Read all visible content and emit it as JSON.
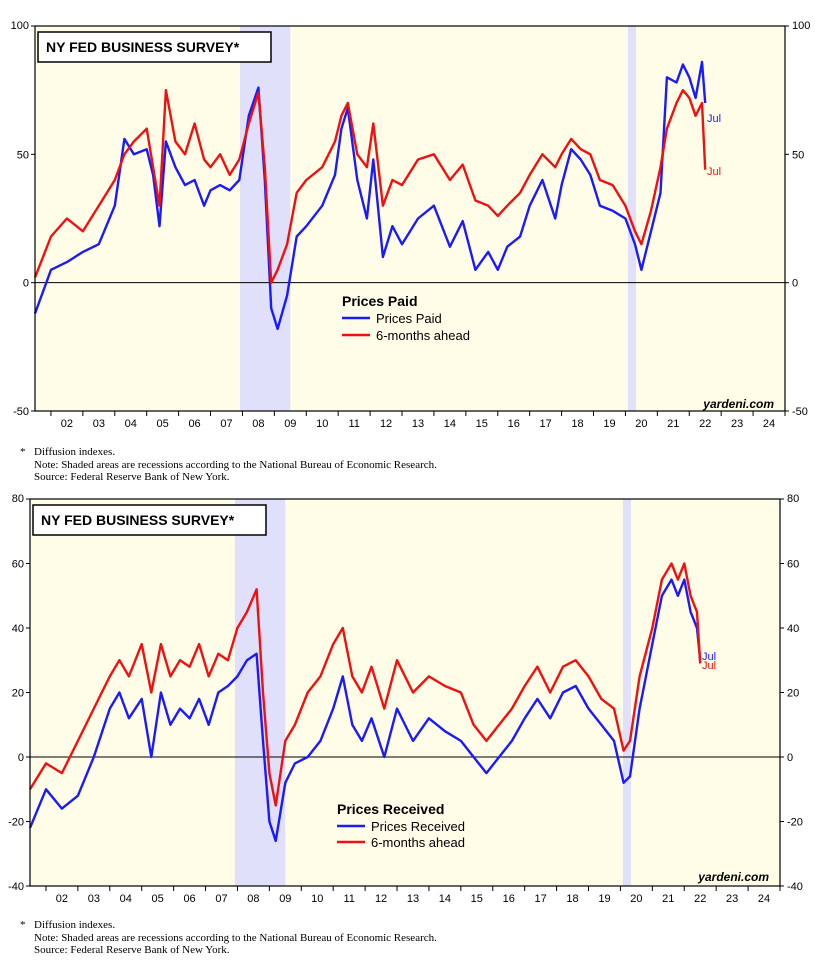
{
  "charts": [
    {
      "title": "NY FED BUSINESS SURVEY*",
      "legend_title": "Prices Paid",
      "watermark": "yardeni.com",
      "series_labels": [
        "Prices Paid",
        "6-months ahead"
      ],
      "end_labels": [
        "Jul",
        "Jul"
      ],
      "footnotes": {
        "star": "*",
        "line1": "Diffusion indexes.",
        "line2": "Note: Shaded areas are recessions according to the National Bureau of Economic Research.",
        "line3": "Source: Federal Reserve Bank of New York."
      }
    },
    {
      "title": "NY FED BUSINESS SURVEY*",
      "legend_title": "Prices Received",
      "watermark": "yardeni.com",
      "series_labels": [
        "Prices Received",
        "6-months ahead"
      ],
      "end_labels": [
        "Jul",
        "Jul"
      ],
      "footnotes": {
        "star": "*",
        "line1": "Diffusion indexes.",
        "line2": "Note: Shaded areas are recessions according to the National Bureau of Economic Research.",
        "line3": "Source: Federal Reserve Bank of New York."
      }
    }
  ],
  "colors": {
    "background": "#FFFDE7",
    "recession": "#E0E0FA",
    "blue": "#1a1aff",
    "red": "#ee1111"
  },
  "chart_data": [
    {
      "type": "line",
      "title": "NY FED BUSINESS SURVEY*",
      "subtitle": "Prices Paid",
      "xlim": [
        2001.5,
        2025.0
      ],
      "ylim": [
        -50,
        100
      ],
      "yticks": [
        -50,
        0,
        50,
        100
      ],
      "xticklabels": [
        "02",
        "03",
        "04",
        "05",
        "06",
        "07",
        "08",
        "09",
        "10",
        "11",
        "12",
        "13",
        "14",
        "15",
        "16",
        "17",
        "18",
        "19",
        "20",
        "21",
        "22",
        "23",
        "24"
      ],
      "recessions": [
        [
          2007.92,
          2009.5
        ],
        [
          2020.08,
          2020.33
        ]
      ],
      "zero_line": true,
      "series": [
        {
          "name": "Prices Paid",
          "color": "blue",
          "x": [
            2001.5,
            2002.0,
            2002.5,
            2003.0,
            2003.5,
            2004.0,
            2004.3,
            2004.6,
            2005.0,
            2005.2,
            2005.4,
            2005.6,
            2005.9,
            2006.2,
            2006.5,
            2006.8,
            2007.0,
            2007.3,
            2007.6,
            2007.9,
            2008.2,
            2008.5,
            2008.7,
            2008.9,
            2009.1,
            2009.4,
            2009.7,
            2010.0,
            2010.5,
            2010.9,
            2011.1,
            2011.3,
            2011.6,
            2011.9,
            2012.1,
            2012.4,
            2012.7,
            2013.0,
            2013.5,
            2014.0,
            2014.5,
            2014.9,
            2015.3,
            2015.7,
            2016.0,
            2016.3,
            2016.7,
            2017.0,
            2017.4,
            2017.8,
            2018.0,
            2018.3,
            2018.6,
            2018.9,
            2019.2,
            2019.6,
            2020.0,
            2020.3,
            2020.5,
            2020.8,
            2021.1,
            2021.3,
            2021.6,
            2021.8,
            2022.0,
            2022.2,
            2022.4,
            2022.5
          ],
          "y": [
            -12,
            5,
            8,
            12,
            15,
            30,
            56,
            50,
            52,
            42,
            22,
            55,
            45,
            38,
            40,
            30,
            36,
            38,
            36,
            40,
            65,
            76,
            40,
            -10,
            -18,
            -5,
            18,
            22,
            30,
            42,
            60,
            68,
            40,
            25,
            48,
            10,
            22,
            15,
            25,
            30,
            14,
            24,
            5,
            12,
            5,
            14,
            18,
            30,
            40,
            25,
            38,
            52,
            48,
            42,
            30,
            28,
            25,
            15,
            5,
            20,
            35,
            80,
            78,
            85,
            80,
            72,
            86,
            70
          ],
          "end_label": "Jul"
        },
        {
          "name": "6-months ahead",
          "color": "red",
          "x": [
            2001.5,
            2002.0,
            2002.5,
            2003.0,
            2003.5,
            2004.0,
            2004.3,
            2004.6,
            2005.0,
            2005.2,
            2005.4,
            2005.6,
            2005.9,
            2006.2,
            2006.5,
            2006.8,
            2007.0,
            2007.3,
            2007.6,
            2007.9,
            2008.2,
            2008.5,
            2008.7,
            2008.9,
            2009.1,
            2009.4,
            2009.7,
            2010.0,
            2010.5,
            2010.9,
            2011.1,
            2011.3,
            2011.6,
            2011.9,
            2012.1,
            2012.4,
            2012.7,
            2013.0,
            2013.5,
            2014.0,
            2014.5,
            2014.9,
            2015.3,
            2015.7,
            2016.0,
            2016.3,
            2016.7,
            2017.0,
            2017.4,
            2017.8,
            2018.0,
            2018.3,
            2018.6,
            2018.9,
            2019.2,
            2019.6,
            2020.0,
            2020.3,
            2020.5,
            2020.8,
            2021.1,
            2021.3,
            2021.6,
            2021.8,
            2022.0,
            2022.2,
            2022.4,
            2022.5
          ],
          "y": [
            2,
            18,
            25,
            20,
            30,
            40,
            50,
            55,
            60,
            45,
            30,
            75,
            55,
            50,
            62,
            48,
            45,
            50,
            42,
            48,
            62,
            74,
            45,
            0,
            5,
            15,
            35,
            40,
            45,
            55,
            65,
            70,
            50,
            45,
            62,
            30,
            40,
            38,
            48,
            50,
            40,
            46,
            32,
            30,
            26,
            30,
            35,
            42,
            50,
            45,
            50,
            56,
            52,
            50,
            40,
            38,
            30,
            20,
            15,
            28,
            45,
            60,
            70,
            75,
            72,
            65,
            70,
            44
          ],
          "end_label": "Jul"
        }
      ]
    },
    {
      "type": "line",
      "title": "NY FED BUSINESS SURVEY*",
      "subtitle": "Prices Received",
      "xlim": [
        2001.5,
        2025.0
      ],
      "ylim": [
        -40,
        80
      ],
      "yticks": [
        -40,
        -20,
        0,
        20,
        40,
        60,
        80
      ],
      "xticklabels": [
        "02",
        "03",
        "04",
        "05",
        "06",
        "07",
        "08",
        "09",
        "10",
        "11",
        "12",
        "13",
        "14",
        "15",
        "16",
        "17",
        "18",
        "19",
        "20",
        "21",
        "22",
        "23",
        "24"
      ],
      "recessions": [
        [
          2007.92,
          2009.5
        ],
        [
          2020.08,
          2020.33
        ]
      ],
      "zero_line": true,
      "series": [
        {
          "name": "Prices Received",
          "color": "blue",
          "x": [
            2001.5,
            2002.0,
            2002.5,
            2003.0,
            2003.5,
            2004.0,
            2004.3,
            2004.6,
            2005.0,
            2005.3,
            2005.6,
            2005.9,
            2006.2,
            2006.5,
            2006.8,
            2007.1,
            2007.4,
            2007.7,
            2008.0,
            2008.3,
            2008.6,
            2008.8,
            2009.0,
            2009.2,
            2009.5,
            2009.8,
            2010.2,
            2010.6,
            2011.0,
            2011.3,
            2011.6,
            2011.9,
            2012.2,
            2012.6,
            2013.0,
            2013.5,
            2014.0,
            2014.5,
            2015.0,
            2015.4,
            2015.8,
            2016.2,
            2016.6,
            2017.0,
            2017.4,
            2017.8,
            2018.2,
            2018.6,
            2019.0,
            2019.4,
            2019.8,
            2020.1,
            2020.3,
            2020.6,
            2021.0,
            2021.3,
            2021.6,
            2021.8,
            2022.0,
            2022.2,
            2022.4,
            2022.5
          ],
          "y": [
            -22,
            -10,
            -16,
            -12,
            0,
            15,
            20,
            12,
            18,
            0,
            20,
            10,
            15,
            12,
            18,
            10,
            20,
            22,
            25,
            30,
            32,
            5,
            -20,
            -26,
            -8,
            -2,
            0,
            5,
            15,
            25,
            10,
            5,
            12,
            0,
            15,
            5,
            12,
            8,
            5,
            0,
            -5,
            0,
            5,
            12,
            18,
            12,
            20,
            22,
            15,
            10,
            5,
            -8,
            -6,
            15,
            35,
            50,
            55,
            50,
            55,
            45,
            40,
            30
          ],
          "end_label": "Jul"
        },
        {
          "name": "6-months ahead",
          "color": "red",
          "x": [
            2001.5,
            2002.0,
            2002.5,
            2003.0,
            2003.5,
            2004.0,
            2004.3,
            2004.6,
            2005.0,
            2005.3,
            2005.6,
            2005.9,
            2006.2,
            2006.5,
            2006.8,
            2007.1,
            2007.4,
            2007.7,
            2008.0,
            2008.3,
            2008.6,
            2008.8,
            2009.0,
            2009.2,
            2009.5,
            2009.8,
            2010.2,
            2010.6,
            2011.0,
            2011.3,
            2011.6,
            2011.9,
            2012.2,
            2012.6,
            2013.0,
            2013.5,
            2014.0,
            2014.5,
            2015.0,
            2015.4,
            2015.8,
            2016.2,
            2016.6,
            2017.0,
            2017.4,
            2017.8,
            2018.2,
            2018.6,
            2019.0,
            2019.4,
            2019.8,
            2020.1,
            2020.3,
            2020.6,
            2021.0,
            2021.3,
            2021.6,
            2021.8,
            2022.0,
            2022.2,
            2022.4,
            2022.5
          ],
          "y": [
            -10,
            -2,
            -5,
            5,
            15,
            25,
            30,
            25,
            35,
            20,
            35,
            25,
            30,
            28,
            35,
            25,
            32,
            30,
            40,
            45,
            52,
            20,
            -5,
            -15,
            5,
            10,
            20,
            25,
            35,
            40,
            25,
            20,
            28,
            15,
            30,
            20,
            25,
            22,
            20,
            10,
            5,
            10,
            15,
            22,
            28,
            20,
            28,
            30,
            25,
            18,
            15,
            2,
            5,
            25,
            40,
            55,
            60,
            55,
            60,
            50,
            45,
            29
          ],
          "end_label": "Jul"
        }
      ]
    }
  ]
}
